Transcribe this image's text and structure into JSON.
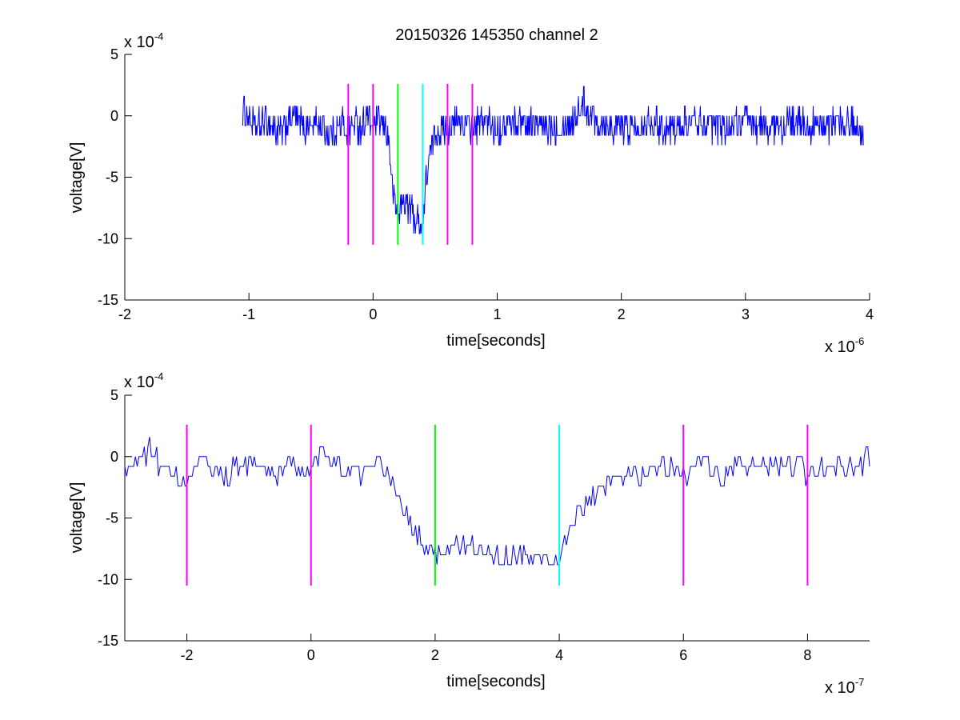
{
  "chart_data": [
    {
      "type": "line",
      "title": "20150326 145350 channel 2",
      "xlabel": "time[seconds]",
      "ylabel": "voltage[V]",
      "x_multiplier_label": "x 10",
      "x_multiplier_exp": "-6",
      "y_multiplier_label": "x 10",
      "y_multiplier_exp": "-4",
      "xlim": [
        -2,
        4
      ],
      "ylim": [
        -15,
        5
      ],
      "xticks": [
        -2,
        -1,
        0,
        1,
        2,
        3,
        4
      ],
      "xtick_labels": [
        "-2",
        "-1",
        "0",
        "1",
        "2",
        "3",
        "4"
      ],
      "yticks": [
        -15,
        -10,
        -5,
        0,
        5
      ],
      "ytick_labels": [
        "-15",
        "-10",
        "-5",
        "0",
        "5"
      ],
      "series": [
        {
          "color": "#0000ff",
          "points": [
            [
              -1.05,
              0.5
            ],
            [
              -0.95,
              -1.0
            ],
            [
              -0.85,
              -0.5
            ],
            [
              -0.75,
              -1.5
            ],
            [
              -0.65,
              0.0
            ],
            [
              -0.55,
              -1.0
            ],
            [
              -0.45,
              -0.5
            ],
            [
              -0.35,
              -1.5
            ],
            [
              -0.25,
              -0.5
            ],
            [
              -0.2,
              -1.5
            ],
            [
              -0.15,
              -0.5
            ],
            [
              -0.1,
              -1.0
            ],
            [
              -0.05,
              0.0
            ],
            [
              0.0,
              -1.0
            ],
            [
              0.05,
              -0.5
            ],
            [
              0.1,
              -1.0
            ],
            [
              0.13,
              -2.0
            ],
            [
              0.15,
              -5.5
            ],
            [
              0.18,
              -7.5
            ],
            [
              0.2,
              -8.0
            ],
            [
              0.25,
              -7.0
            ],
            [
              0.3,
              -7.5
            ],
            [
              0.35,
              -8.5
            ],
            [
              0.4,
              -9.0
            ],
            [
              0.43,
              -5.0
            ],
            [
              0.47,
              -2.5
            ],
            [
              0.5,
              -1.5
            ],
            [
              0.55,
              -1.0
            ],
            [
              0.6,
              -1.0
            ],
            [
              0.7,
              -0.5
            ],
            [
              0.8,
              -1.0
            ],
            [
              0.9,
              -0.5
            ],
            [
              1.0,
              -1.0
            ],
            [
              1.2,
              -0.5
            ],
            [
              1.4,
              -1.0
            ],
            [
              1.6,
              -0.5
            ],
            [
              1.7,
              1.0
            ],
            [
              1.8,
              -0.5
            ],
            [
              2.0,
              -1.0
            ],
            [
              2.2,
              -0.5
            ],
            [
              2.4,
              -1.0
            ],
            [
              2.6,
              -0.5
            ],
            [
              2.8,
              -1.0
            ],
            [
              3.0,
              -0.5
            ],
            [
              3.2,
              -1.0
            ],
            [
              3.4,
              -0.5
            ],
            [
              3.6,
              -1.0
            ],
            [
              3.8,
              -0.5
            ],
            [
              3.95,
              -1.0
            ]
          ]
        }
      ],
      "markers": [
        {
          "x": -0.2,
          "ymin": -10.5,
          "ymax": 2.6,
          "color": "#ff00ff"
        },
        {
          "x": 0.0,
          "ymin": -10.5,
          "ymax": 2.6,
          "color": "#ff00ff"
        },
        {
          "x": 0.2,
          "ymin": -10.5,
          "ymax": 2.6,
          "color": "#00ff00"
        },
        {
          "x": 0.4,
          "ymin": -10.5,
          "ymax": 2.6,
          "color": "#00ffff"
        },
        {
          "x": 0.6,
          "ymin": -10.5,
          "ymax": 2.6,
          "color": "#ff00ff"
        },
        {
          "x": 0.8,
          "ymin": -10.5,
          "ymax": 2.6,
          "color": "#ff00ff"
        }
      ],
      "grid": false
    },
    {
      "type": "line",
      "title": "",
      "xlabel": "time[seconds]",
      "ylabel": "voltage[V]",
      "x_multiplier_label": "x 10",
      "x_multiplier_exp": "-7",
      "y_multiplier_label": "x 10",
      "y_multiplier_exp": "-4",
      "xlim": [
        -3,
        9
      ],
      "ylim": [
        -15,
        5
      ],
      "xticks": [
        -2,
        0,
        2,
        4,
        6,
        8
      ],
      "xtick_labels": [
        "-2",
        "0",
        "2",
        "4",
        "6",
        "8"
      ],
      "yticks": [
        -15,
        -10,
        -5,
        0,
        5
      ],
      "ytick_labels": [
        "-15",
        "-10",
        "-5",
        "0",
        "5"
      ],
      "series": [
        {
          "color": "#0000ff",
          "points": [
            [
              -3.0,
              -1.5
            ],
            [
              -2.6,
              0.5
            ],
            [
              -2.3,
              -1.5
            ],
            [
              -2.0,
              -2.5
            ],
            [
              -1.8,
              -0.5
            ],
            [
              -1.4,
              -1.5
            ],
            [
              -1.0,
              -0.5
            ],
            [
              -0.6,
              -1.5
            ],
            [
              -0.3,
              -0.5
            ],
            [
              0.0,
              -1.5
            ],
            [
              0.2,
              0.5
            ],
            [
              0.5,
              -1.0
            ],
            [
              0.8,
              -1.5
            ],
            [
              1.1,
              -0.5
            ],
            [
              1.3,
              -2.0
            ],
            [
              1.5,
              -4.5
            ],
            [
              1.7,
              -6.5
            ],
            [
              1.9,
              -7.5
            ],
            [
              2.0,
              -8.0
            ],
            [
              2.3,
              -7.0
            ],
            [
              2.6,
              -7.5
            ],
            [
              2.9,
              -8.0
            ],
            [
              3.2,
              -8.5
            ],
            [
              3.5,
              -8.0
            ],
            [
              3.8,
              -8.5
            ],
            [
              4.0,
              -8.0
            ],
            [
              4.2,
              -5.5
            ],
            [
              4.5,
              -3.5
            ],
            [
              4.8,
              -2.5
            ],
            [
              5.1,
              -1.5
            ],
            [
              5.4,
              -1.0
            ],
            [
              5.7,
              -0.5
            ],
            [
              6.0,
              -1.5
            ],
            [
              6.3,
              -0.5
            ],
            [
              6.6,
              -1.5
            ],
            [
              7.0,
              -0.5
            ],
            [
              7.4,
              -1.0
            ],
            [
              7.8,
              -0.5
            ],
            [
              8.0,
              -1.5
            ],
            [
              8.4,
              -0.5
            ],
            [
              8.7,
              -1.0
            ],
            [
              9.0,
              0.0
            ]
          ]
        }
      ],
      "markers": [
        {
          "x": -2.0,
          "ymin": -10.5,
          "ymax": 2.6,
          "color": "#ff00ff"
        },
        {
          "x": 0.0,
          "ymin": -10.5,
          "ymax": 2.6,
          "color": "#ff00ff"
        },
        {
          "x": 2.0,
          "ymin": -10.5,
          "ymax": 2.6,
          "color": "#00ff00"
        },
        {
          "x": 4.0,
          "ymin": -10.5,
          "ymax": 2.6,
          "color": "#00ffff"
        },
        {
          "x": 6.0,
          "ymin": -10.5,
          "ymax": 2.6,
          "color": "#ff00ff"
        },
        {
          "x": 8.0,
          "ymin": -10.5,
          "ymax": 2.6,
          "color": "#ff00ff"
        }
      ],
      "grid": false
    }
  ]
}
